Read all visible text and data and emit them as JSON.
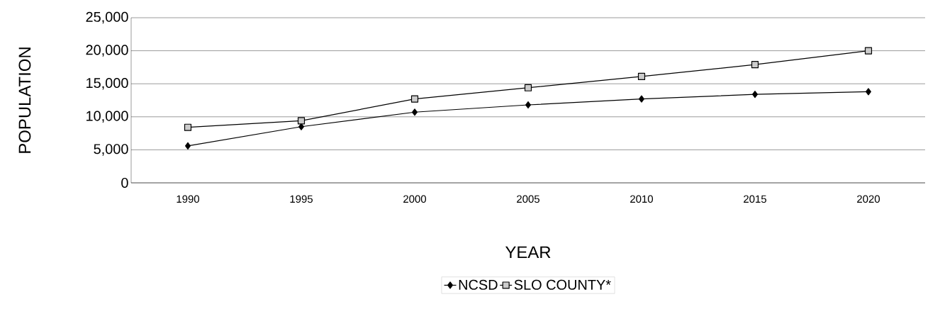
{
  "chart_data": {
    "type": "line",
    "xlabel": "YEAR",
    "ylabel": "POPULATION",
    "categories": [
      "1990",
      "1995",
      "2000",
      "2005",
      "2010",
      "2015",
      "2020"
    ],
    "series": [
      {
        "name": "NCSD",
        "color": "#000000",
        "marker": "diamond",
        "values": [
          5600,
          8500,
          10700,
          11800,
          12700,
          13400,
          13800
        ]
      },
      {
        "name": "SLO COUNTY*",
        "color": "#000000",
        "marker": "square",
        "values": [
          8400,
          9400,
          12700,
          14400,
          16100,
          17900,
          20000
        ]
      }
    ],
    "ylim": [
      0,
      25000
    ],
    "yticks": [
      {
        "value": 0,
        "label": "0"
      },
      {
        "value": 5000,
        "label": "5,000"
      },
      {
        "value": 10000,
        "label": "10,000"
      },
      {
        "value": 15000,
        "label": "15,000"
      },
      {
        "value": 20000,
        "label": "20,000"
      },
      {
        "value": 25000,
        "label": "25,000"
      }
    ],
    "grid": "y",
    "legend": "bottom",
    "line_style": "solid"
  }
}
